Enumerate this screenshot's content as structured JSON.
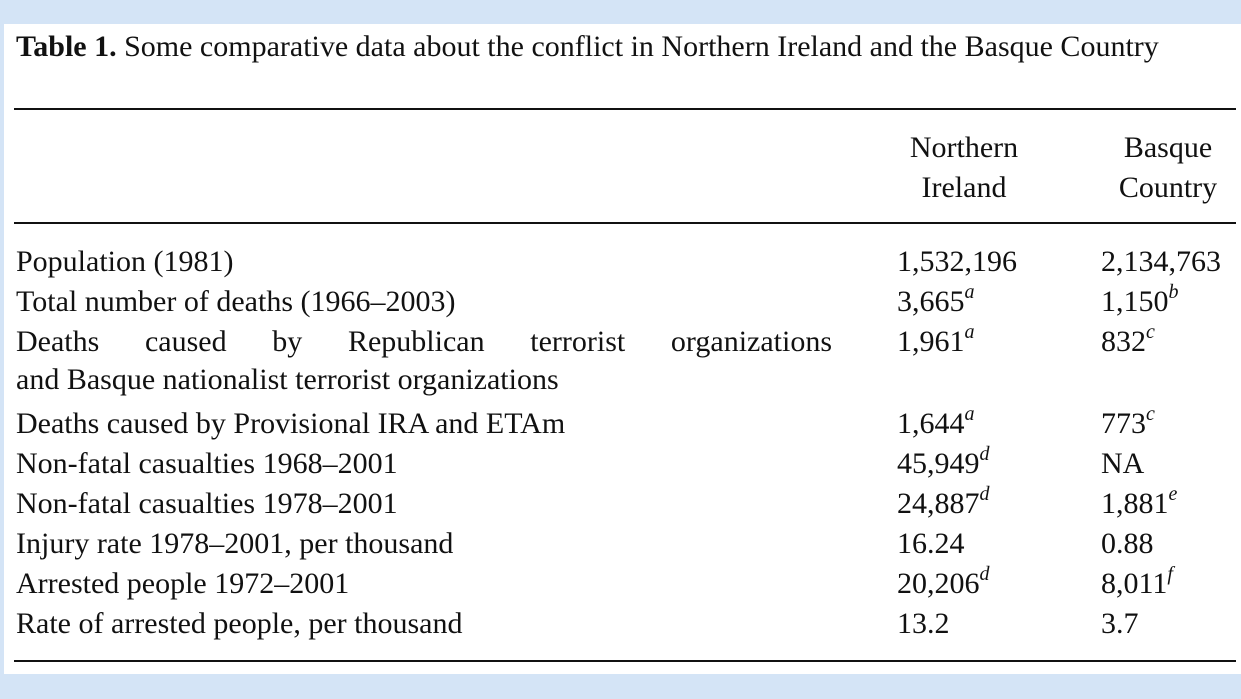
{
  "table": {
    "caption_label": "Table 1.",
    "caption_text": "Some comparative data about the conflict in Northern Ireland and the Basque Country",
    "columns": [
      {
        "line1": "Northern",
        "line2": "Ireland"
      },
      {
        "line1": "Basque",
        "line2": "Country"
      }
    ],
    "rows": [
      {
        "label": "Population (1981)",
        "v1": "1,532,196",
        "n1": "",
        "v2": "2,134,763",
        "n2": ""
      },
      {
        "label": "Total number of deaths (1966–2003)",
        "v1": "3,665",
        "n1": "a",
        "v2": "1,150",
        "n2": "b"
      },
      {
        "label": "Deaths caused by Republican terrorist organizations",
        "label2": "and Basque nationalist terrorist organizations",
        "v1": "1,961",
        "n1": "a",
        "v2": "832",
        "n2": "c"
      },
      {
        "label": "Deaths caused by Provisional IRA and ETAm",
        "v1": "1,644",
        "n1": "a",
        "v2": "773",
        "n2": "c"
      },
      {
        "label": "Non-fatal casualties 1968–2001",
        "v1": "45,949",
        "n1": "d",
        "v2": "NA",
        "n2": ""
      },
      {
        "label": "Non-fatal casualties 1978–2001",
        "v1": "24,887",
        "n1": "d",
        "v2": "1,881",
        "n2": "e"
      },
      {
        "label": "Injury rate 1978–2001, per thousand",
        "v1": "16.24",
        "n1": "",
        "v2": "0.88",
        "n2": ""
      },
      {
        "label": "Arrested people 1972–2001",
        "v1": "20,206",
        "n1": "d",
        "v2": "8,011",
        "n2": "f"
      },
      {
        "label": "Rate of arrested people, per thousand",
        "v1": "13.2",
        "n1": "",
        "v2": "3.7",
        "n2": ""
      }
    ]
  }
}
